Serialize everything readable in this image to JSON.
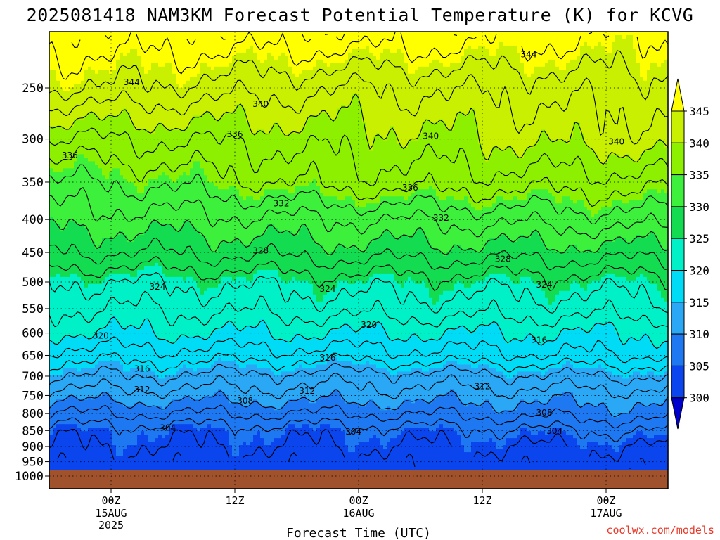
{
  "chart_data": {
    "type": "heatmap",
    "title": "2025081418 NAM3KM Forecast Potential Temperature (K) for KCVG",
    "xlabel": "Forecast Time (UTC)",
    "ylabel": "",
    "credit": "coolwx.com/models",
    "x_ticks": [
      {
        "label": "00Z",
        "sub": [
          "15AUG",
          "2025"
        ],
        "hour": 6
      },
      {
        "label": "12Z",
        "sub": [],
        "hour": 18
      },
      {
        "label": "00Z",
        "sub": [
          "16AUG"
        ],
        "hour": 30
      },
      {
        "label": "12Z",
        "sub": [],
        "hour": 42
      },
      {
        "label": "00Z",
        "sub": [
          "17AUG"
        ],
        "hour": 54
      }
    ],
    "x_range_hours": [
      0,
      60
    ],
    "y_ticks": [
      250,
      300,
      350,
      400,
      450,
      500,
      550,
      600,
      650,
      700,
      750,
      800,
      850,
      900,
      950,
      1000
    ],
    "y_range_hpa": [
      200,
      1000
    ],
    "y_scale": "log-pressure",
    "grid": "dotted",
    "colorbar": {
      "levels": [
        300,
        305,
        310,
        315,
        320,
        325,
        330,
        335,
        340,
        345
      ],
      "colors": [
        "#0000cc",
        "#0a45ee",
        "#1e78f2",
        "#2aa8f5",
        "#00dcf5",
        "#00f0c8",
        "#14dc50",
        "#3cf03c",
        "#8cf000",
        "#c8f000",
        "#ffff00"
      ],
      "extend": "both"
    },
    "surface_color": "#a0522d",
    "contour_labels": [
      {
        "text": "344",
        "hour": 8,
        "p": 245
      },
      {
        "text": "340",
        "hour": 20.5,
        "p": 265
      },
      {
        "text": "344",
        "hour": 46.5,
        "p": 222
      },
      {
        "text": "336",
        "hour": 2,
        "p": 318
      },
      {
        "text": "336",
        "hour": 18,
        "p": 295
      },
      {
        "text": "340",
        "hour": 37,
        "p": 297
      },
      {
        "text": "340",
        "hour": 55,
        "p": 303
      },
      {
        "text": "336",
        "hour": 35,
        "p": 357
      },
      {
        "text": "332",
        "hour": 22.5,
        "p": 378
      },
      {
        "text": "332",
        "hour": 38,
        "p": 398
      },
      {
        "text": "328",
        "hour": 20.5,
        "p": 447
      },
      {
        "text": "328",
        "hour": 44,
        "p": 461
      },
      {
        "text": "324",
        "hour": 10.5,
        "p": 509
      },
      {
        "text": "324",
        "hour": 27,
        "p": 513
      },
      {
        "text": "324",
        "hour": 48,
        "p": 505
      },
      {
        "text": "320",
        "hour": 31,
        "p": 583
      },
      {
        "text": "320",
        "hour": 5,
        "p": 606
      },
      {
        "text": "316",
        "hour": 27,
        "p": 656
      },
      {
        "text": "316",
        "hour": 47.5,
        "p": 615
      },
      {
        "text": "316",
        "hour": 9,
        "p": 682
      },
      {
        "text": "312",
        "hour": 9,
        "p": 734
      },
      {
        "text": "312",
        "hour": 25,
        "p": 738
      },
      {
        "text": "312",
        "hour": 42,
        "p": 726
      },
      {
        "text": "308",
        "hour": 19,
        "p": 764
      },
      {
        "text": "308",
        "hour": 48,
        "p": 798
      },
      {
        "text": "304",
        "hour": 11.5,
        "p": 842
      },
      {
        "text": "304",
        "hour": 29.5,
        "p": 854
      },
      {
        "text": "304",
        "hour": 49,
        "p": 852
      }
    ],
    "potential_temperature_K_by_pressure": {
      "pressure_hpa": [
        210,
        250,
        300,
        350,
        400,
        450,
        500,
        550,
        600,
        650,
        700,
        750,
        800,
        850,
        900,
        950,
        975
      ],
      "theta_t06": [
        347,
        344,
        338,
        334,
        331,
        328,
        324,
        322,
        320,
        317,
        314,
        311,
        308,
        305,
        304,
        303,
        303
      ],
      "theta_t30": [
        347,
        342,
        339,
        337,
        332,
        329,
        325,
        323,
        320,
        317,
        313,
        311,
        308,
        305,
        304,
        303,
        303
      ],
      "theta_t54": [
        346,
        343,
        341,
        337,
        333,
        329,
        325,
        323,
        320,
        318,
        314,
        311,
        309,
        306,
        304,
        303,
        303
      ]
    }
  }
}
